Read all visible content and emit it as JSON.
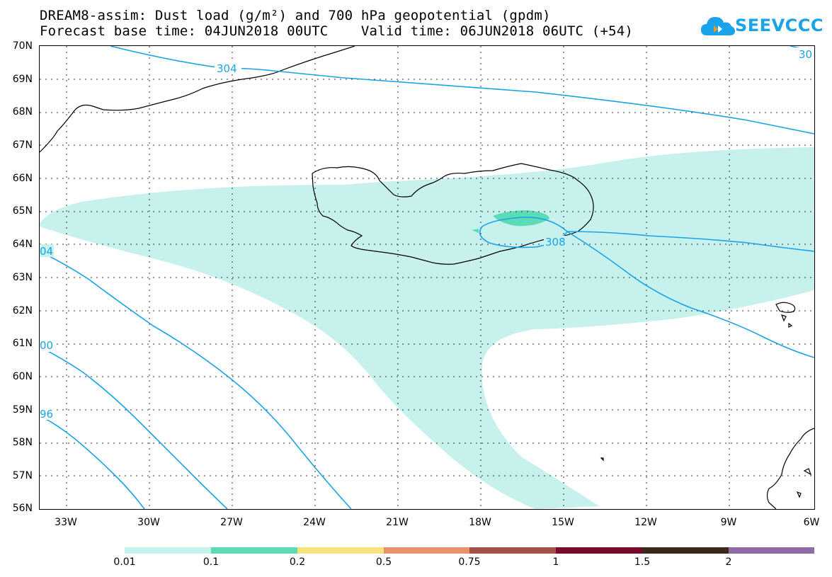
{
  "title_line1": "DREAM8-assim: Dust load (g/m²) and 700 hPa geopotential (gpdm)",
  "title_line2": "Forecast base time: 04JUN2018 00UTC    Valid time: 06JUN2018 06UTC (+54)",
  "logo": {
    "text": "SEEVCCC",
    "icon": "cloud-icon",
    "color": "#1aa3e8"
  },
  "lat_labels": [
    "70N",
    "69N",
    "68N",
    "67N",
    "66N",
    "65N",
    "64N",
    "63N",
    "62N",
    "61N",
    "60N",
    "59N",
    "58N",
    "57N",
    "56N"
  ],
  "lon_labels": [
    "33W",
    "30W",
    "27W",
    "24W",
    "21W",
    "18W",
    "15W",
    "12W",
    "9W",
    "6W"
  ],
  "contour_labels": [
    "304",
    "308",
    "30",
    "04",
    "00",
    "96"
  ],
  "colorbar": {
    "colors": [
      "#c6f1ec",
      "#5cdcb5",
      "#f7e27e",
      "#e8916b",
      "#a45149",
      "#7a0a2b",
      "#3b2a17",
      "#8f6aa6"
    ],
    "labels": [
      "0.01",
      "0.1",
      "0.2",
      "0.5",
      "0.75",
      "1",
      "1.5",
      "2"
    ]
  },
  "colors": {
    "contour": "#1aa3e8",
    "dust_low": "#c6f1ec",
    "dust_mid": "#5cdcb5"
  }
}
